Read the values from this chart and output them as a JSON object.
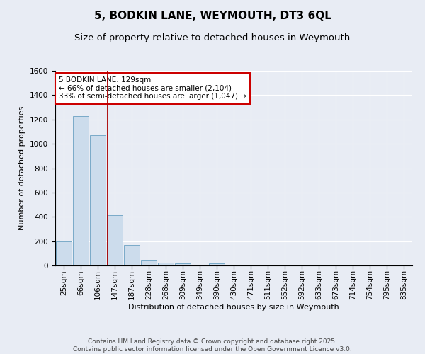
{
  "title": "5, BODKIN LANE, WEYMOUTH, DT3 6QL",
  "subtitle": "Size of property relative to detached houses in Weymouth",
  "xlabel": "Distribution of detached houses by size in Weymouth",
  "ylabel": "Number of detached properties",
  "categories": [
    "25sqm",
    "66sqm",
    "106sqm",
    "147sqm",
    "187sqm",
    "228sqm",
    "268sqm",
    "309sqm",
    "349sqm",
    "390sqm",
    "430sqm",
    "471sqm",
    "511sqm",
    "552sqm",
    "592sqm",
    "633sqm",
    "673sqm",
    "714sqm",
    "754sqm",
    "795sqm",
    "835sqm"
  ],
  "values": [
    200,
    1230,
    1070,
    415,
    170,
    45,
    25,
    15,
    0,
    15,
    0,
    0,
    0,
    0,
    0,
    0,
    0,
    0,
    0,
    0,
    0
  ],
  "bar_color": "#ccdcec",
  "bar_edge_color": "#7aaac8",
  "red_line_x": 2.58,
  "annotation_text": "5 BODKIN LANE: 129sqm\n← 66% of detached houses are smaller (2,104)\n33% of semi-detached houses are larger (1,047) →",
  "annotation_box_color": "#ffffff",
  "annotation_box_edge_color": "#cc0000",
  "ylim": [
    0,
    1600
  ],
  "yticks": [
    0,
    200,
    400,
    600,
    800,
    1000,
    1200,
    1400,
    1600
  ],
  "background_color": "#e8ecf4",
  "plot_bg_color": "#e8ecf4",
  "footer_line1": "Contains HM Land Registry data © Crown copyright and database right 2025.",
  "footer_line2": "Contains public sector information licensed under the Open Government Licence v3.0.",
  "title_fontsize": 11,
  "subtitle_fontsize": 9.5,
  "axis_label_fontsize": 8,
  "tick_fontsize": 7.5,
  "annotation_fontsize": 7.5,
  "footer_fontsize": 6.5
}
